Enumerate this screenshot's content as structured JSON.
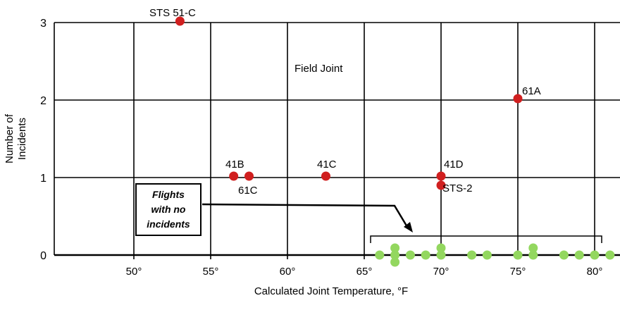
{
  "colors": {
    "incident_point": "#d01f1f",
    "no_incident_point": "#93d75f",
    "grid": "#000000",
    "background": "#ffffff"
  },
  "chart_data": {
    "type": "scatter",
    "title": "",
    "annotation_title": "Field Joint",
    "xlabel": "Calculated Joint Temperature, °F",
    "ylabel": "Number of Incidents",
    "ylabel_lines": [
      "Number of",
      "Incidents"
    ],
    "xlim": [
      45,
      81
    ],
    "ylim": [
      0,
      3
    ],
    "x_ticks": [
      50,
      55,
      60,
      65,
      70,
      75,
      80
    ],
    "x_tick_labels": [
      "50°",
      "55°",
      "60°",
      "65°",
      "70°",
      "75°",
      "80°"
    ],
    "y_ticks": [
      0,
      1,
      2,
      3
    ],
    "y_tick_labels": [
      "0",
      "1",
      "2",
      "3"
    ],
    "grid": true,
    "series": [
      {
        "name": "",
        "color": "#d01f1f",
        "points": [
          {
            "x": 53,
            "y": 3,
            "label": "STS 51-C"
          },
          {
            "x": 56.5,
            "y": 1,
            "label": "41B"
          },
          {
            "x": 57.5,
            "y": 1,
            "label": "61C"
          },
          {
            "x": 62.5,
            "y": 1,
            "label": "41C"
          },
          {
            "x": 70,
            "y": 1,
            "label": "41D"
          },
          {
            "x": 70,
            "y": 1,
            "label": "STS-2"
          },
          {
            "x": 75,
            "y": 2,
            "label": "61A"
          }
        ]
      },
      {
        "name": "",
        "color": "#93d75f",
        "points": [
          {
            "x": 66,
            "y": 0
          },
          {
            "x": 67,
            "y": 0
          },
          {
            "x": 67,
            "y": 0
          },
          {
            "x": 67,
            "y": 0
          },
          {
            "x": 68,
            "y": 0
          },
          {
            "x": 69,
            "y": 0
          },
          {
            "x": 70,
            "y": 0
          },
          {
            "x": 70,
            "y": 0
          },
          {
            "x": 72,
            "y": 0
          },
          {
            "x": 73,
            "y": 0
          },
          {
            "x": 75,
            "y": 0
          },
          {
            "x": 76,
            "y": 0
          },
          {
            "x": 76,
            "y": 0
          },
          {
            "x": 78,
            "y": 0
          },
          {
            "x": 79,
            "y": 0
          },
          {
            "x": 80,
            "y": 0
          },
          {
            "x": 81,
            "y": 0
          }
        ]
      }
    ],
    "callout": {
      "lines": [
        "Flights",
        "with no",
        "incidents"
      ]
    }
  }
}
